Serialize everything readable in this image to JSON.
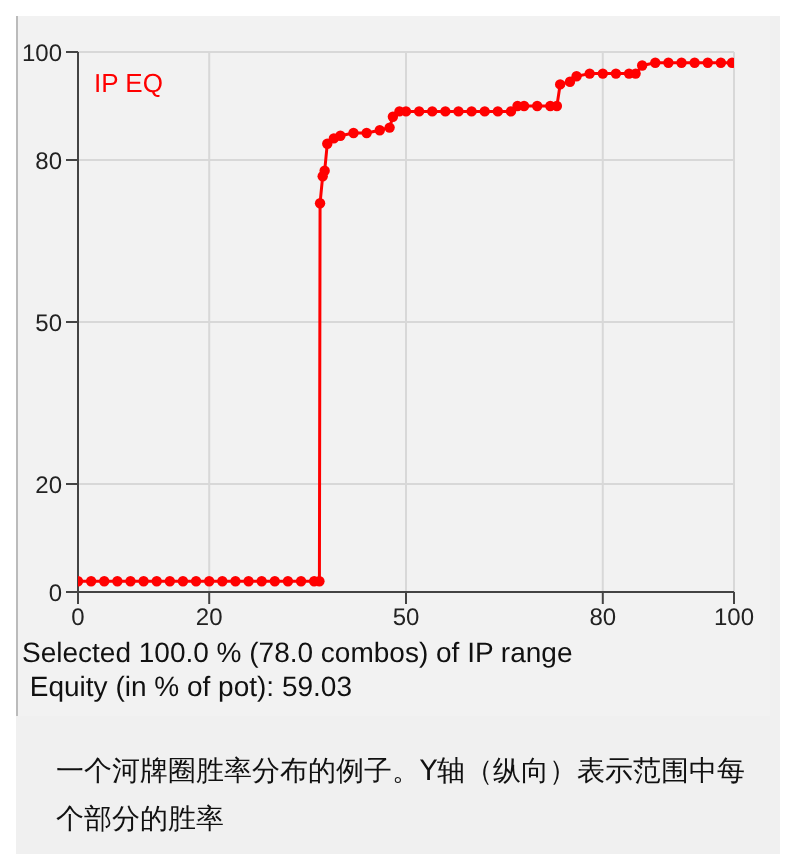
{
  "chart_data": {
    "type": "line",
    "marker": "circle",
    "line_style": "solid",
    "grid": true,
    "x": [
      0,
      2,
      4,
      6,
      8,
      10,
      12,
      14,
      16,
      18,
      20,
      22,
      24,
      26,
      28,
      30,
      32,
      34,
      36,
      36.8,
      36.9,
      37.3,
      37.6,
      38,
      39,
      40,
      42,
      44,
      46,
      47.5,
      48,
      49,
      50,
      52,
      54,
      56,
      58,
      60,
      62,
      64,
      66,
      67,
      68,
      70,
      72,
      73,
      73.5,
      75,
      76,
      78,
      80,
      82,
      84,
      85,
      86,
      88,
      90,
      92,
      94,
      96,
      98,
      99.7
    ],
    "series": [
      {
        "color": "#ff0000",
        "values": [
          2,
          2,
          2,
          2,
          2,
          2,
          2,
          2,
          2,
          2,
          2,
          2,
          2,
          2,
          2,
          2,
          2,
          2,
          2,
          2,
          72,
          77,
          78,
          83,
          84,
          84.5,
          85,
          85,
          85.5,
          86,
          88,
          89,
          89,
          89,
          89,
          89,
          89,
          89,
          89,
          89,
          89,
          90,
          90,
          90,
          90,
          90,
          94,
          94.5,
          95.5,
          96,
          96,
          96,
          96,
          96,
          97.5,
          98,
          98,
          98,
          98,
          98,
          98,
          98
        ]
      }
    ],
    "xlim": [
      0,
      100
    ],
    "ylim": [
      0,
      100
    ],
    "xticks": [
      0,
      20,
      50,
      80,
      100
    ],
    "yticks": [
      0,
      20,
      50,
      80,
      100
    ],
    "annotations": [
      "IP EQ",
      "Selected 100.0 % (78.0 combos) of IP range",
      " Equity (in % of pot): 59.03",
      "一个河牌圈胜率分布的例子。Y轴（纵向）表示范围中每个部分的胜率"
    ]
  }
}
